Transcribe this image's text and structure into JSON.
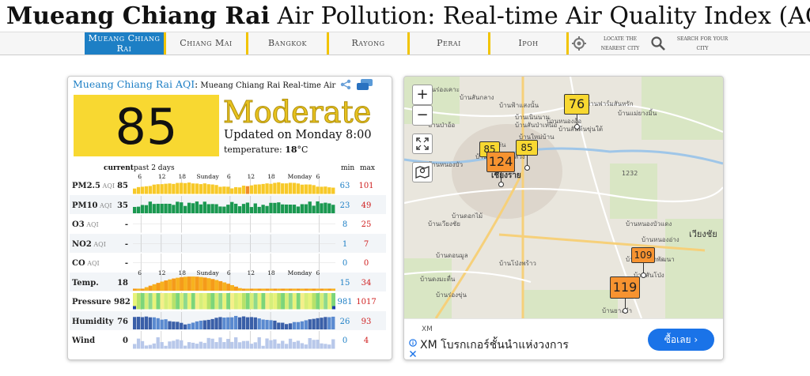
{
  "title": {
    "city": "Mueang Chiang Rai",
    "rest": " Air Pollution: Real-time Air Quality Index (AQI)"
  },
  "nav": {
    "tabs": [
      "Mueang Chiang Rai",
      "Chiang Mai",
      "Bangkok",
      "Rayong",
      "Perai",
      "Ipoh"
    ],
    "locate": "locate the nearest city",
    "search": "search for your city"
  },
  "card": {
    "head_link": "Mueang Chiang Rai AQI",
    "head_colon": ":",
    "head_sub": " Mueang Chiang Rai Real-time Air",
    "aqi": "85",
    "level": "Moderate",
    "updated": "Updated on Monday 8:00",
    "temperature_label": "temperature: ",
    "temperature_value": "18",
    "temperature_unit": "°C",
    "col_current": "current",
    "col_past": "past 2 days",
    "col_min": "min",
    "col_max": "max",
    "hours_top": [
      "6",
      "12",
      "18",
      "Sunday",
      "6",
      "12",
      "18",
      "Monday",
      "6"
    ],
    "colors": {
      "aqi": "#f8d831",
      "pm25": "#f7c928",
      "pm25_peak": "#f08a2a",
      "pm10": "#1a9850",
      "temp": "#f59b1a",
      "min": "#1d7fc5",
      "max": "#d02020"
    },
    "rows": [
      {
        "name": "PM2.5",
        "unit": "AQI",
        "current": "85",
        "min": "63",
        "max": "101"
      },
      {
        "name": "PM10",
        "unit": "AQI",
        "current": "35",
        "min": "23",
        "max": "49"
      },
      {
        "name": "O3",
        "unit": "AQI",
        "current": "-",
        "min": "8",
        "max": "25"
      },
      {
        "name": "NO2",
        "unit": "AQI",
        "current": "-",
        "min": "1",
        "max": "7"
      },
      {
        "name": "CO",
        "unit": "AQI",
        "current": "-",
        "min": "0",
        "max": "0"
      },
      {
        "name": "Temp.",
        "unit": "",
        "current": "18",
        "min": "15",
        "max": "34"
      },
      {
        "name": "Pressure",
        "unit": "",
        "current": "982",
        "min": "981",
        "max": "1017"
      },
      {
        "name": "Humidity",
        "unit": "",
        "current": "76",
        "min": "26",
        "max": "93"
      },
      {
        "name": "Wind",
        "unit": "",
        "current": "0",
        "min": "0",
        "max": "4"
      }
    ]
  },
  "map": {
    "zoom_in": "+",
    "zoom_out": "−",
    "markers": [
      {
        "value": "76",
        "color": "#f8d831"
      },
      {
        "value": "85",
        "color": "#f8d831"
      },
      {
        "value": "85",
        "color": "#f8d831"
      },
      {
        "value": "124",
        "color": "#f79330"
      },
      {
        "value": "109",
        "color": "#f79330"
      },
      {
        "value": "119",
        "color": "#f79330"
      }
    ],
    "places": [
      "บ้านร่องเคาะ",
      "บ้านสันกลาง",
      "บ้านป่าอ้อ",
      "บ้านฟ้าแสงนั้น",
      "บ้านเนินนาม",
      "บ้านสันป่าเหนือ",
      "บ้านใหม่บ้าน",
      "บ้านหนองอ้อ",
      "บ้านสันต้นขุ่นใต้",
      "บ้านเด่น",
      "บ้านสันทรายหลวง",
      "บ้านหนองบัว",
      "เชียงราย",
      "บ้านดอกไม้",
      "บ้านเวียงชัย",
      "บ้านดอนมูล",
      "บ้านโป่งพร้าว",
      "บ้านดงมะตื่น",
      "บ้านร่องขุ่น",
      "บ้านฟาร์มสันหรัก",
      "บ้านแม่ยางมิ้น",
      "บ้านหนองบัวแดง",
      "บ้านหนองอ่าง",
      "บ้านห้วยสักพัฒนา",
      "บ้านสันโป่ง",
      "บ้านยางคำ",
      "เวียงชัย",
      "1232"
    ],
    "ad": {
      "brand": "XM",
      "title": "XM โบรกเกอร์ชั้นนำแห่งวงการ",
      "cta": "ซื้อเลย"
    }
  }
}
